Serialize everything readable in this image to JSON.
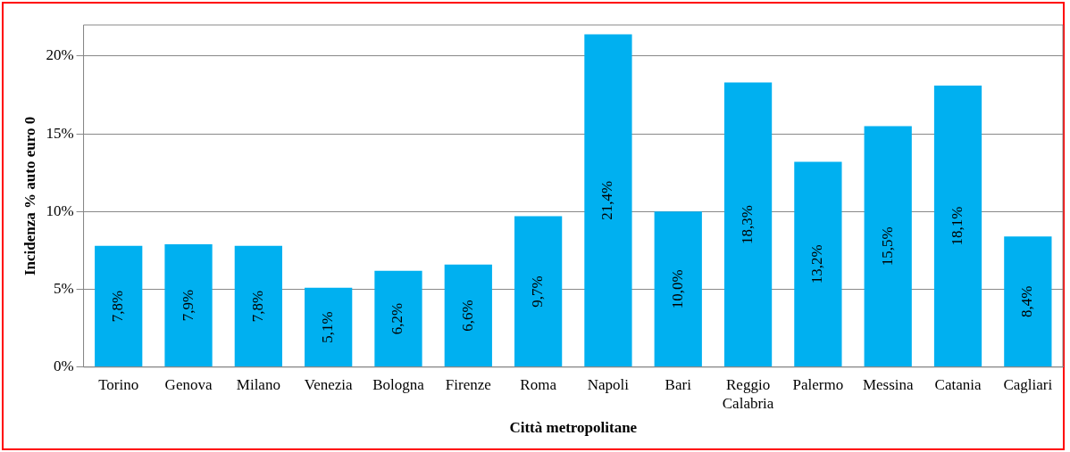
{
  "chart_data": {
    "type": "bar",
    "xlabel": "Città metropolitane",
    "ylabel": "Incidenza % auto euro 0",
    "categories": [
      "Torino",
      "Genova",
      "Milano",
      "Venezia",
      "Bologna",
      "Firenze",
      "Roma",
      "Napoli",
      "Bari",
      "Reggio Calabria",
      "Palermo",
      "Messina",
      "Catania",
      "Cagliari"
    ],
    "values": [
      7.8,
      7.9,
      7.8,
      5.1,
      6.2,
      6.6,
      9.7,
      21.4,
      10.0,
      18.3,
      13.2,
      15.5,
      18.1,
      8.4
    ],
    "value_labels": [
      "7,8%",
      "7,9%",
      "7,8%",
      "5,1%",
      "6,2%",
      "6,6%",
      "9,7%",
      "21,4%",
      "10,0%",
      "18,3%",
      "13,2%",
      "15,5%",
      "18,1%",
      "8,4%"
    ],
    "color": "#00b0f0",
    "ylim": [
      0,
      22
    ],
    "yticks": [
      {
        "value": 0,
        "label": "0%"
      },
      {
        "value": 5,
        "label": "5%"
      },
      {
        "value": 10,
        "label": "10%"
      },
      {
        "value": 15,
        "label": "15%"
      },
      {
        "value": 20,
        "label": "20%"
      }
    ],
    "grid": "y",
    "legend": false
  }
}
